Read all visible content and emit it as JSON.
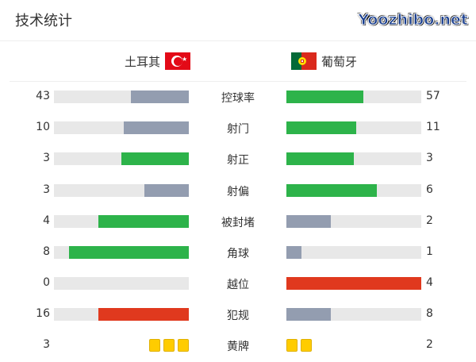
{
  "title": "技术统计",
  "teams": {
    "home": {
      "name": "土耳其",
      "flag": "turkey-flag"
    },
    "away": {
      "name": "葡萄牙",
      "flag": "portugal-flag"
    }
  },
  "colors": {
    "green": "#2db34a",
    "gray": "#939db0",
    "red": "#e0391e",
    "track": "#e8e8e8",
    "card": "#ffcc00"
  },
  "stats": [
    {
      "label": "控球率",
      "home": "43",
      "away": "57",
      "home_fill": 0.43,
      "away_fill": 0.57,
      "home_color": "gray",
      "away_color": "green"
    },
    {
      "label": "射门",
      "home": "10",
      "away": "11",
      "home_fill": 0.48,
      "away_fill": 0.52,
      "home_color": "gray",
      "away_color": "green"
    },
    {
      "label": "射正",
      "home": "3",
      "away": "3",
      "home_fill": 0.5,
      "away_fill": 0.5,
      "home_color": "green",
      "away_color": "green"
    },
    {
      "label": "射偏",
      "home": "3",
      "away": "6",
      "home_fill": 0.33,
      "away_fill": 0.67,
      "home_color": "gray",
      "away_color": "green"
    },
    {
      "label": "被封堵",
      "home": "4",
      "away": "2",
      "home_fill": 0.67,
      "away_fill": 0.33,
      "home_color": "green",
      "away_color": "gray"
    },
    {
      "label": "角球",
      "home": "8",
      "away": "1",
      "home_fill": 0.89,
      "away_fill": 0.11,
      "home_color": "green",
      "away_color": "gray"
    },
    {
      "label": "越位",
      "home": "0",
      "away": "4",
      "home_fill": 0,
      "away_fill": 1,
      "home_color": "gray",
      "away_color": "red"
    },
    {
      "label": "犯规",
      "home": "16",
      "away": "8",
      "home_fill": 0.67,
      "away_fill": 0.33,
      "home_color": "red",
      "away_color": "gray"
    }
  ],
  "yellow_cards": {
    "label": "黄牌",
    "home": "3",
    "away": "2",
    "home_count": 3,
    "away_count": 2
  },
  "watermark": "Yoozhibo.net"
}
